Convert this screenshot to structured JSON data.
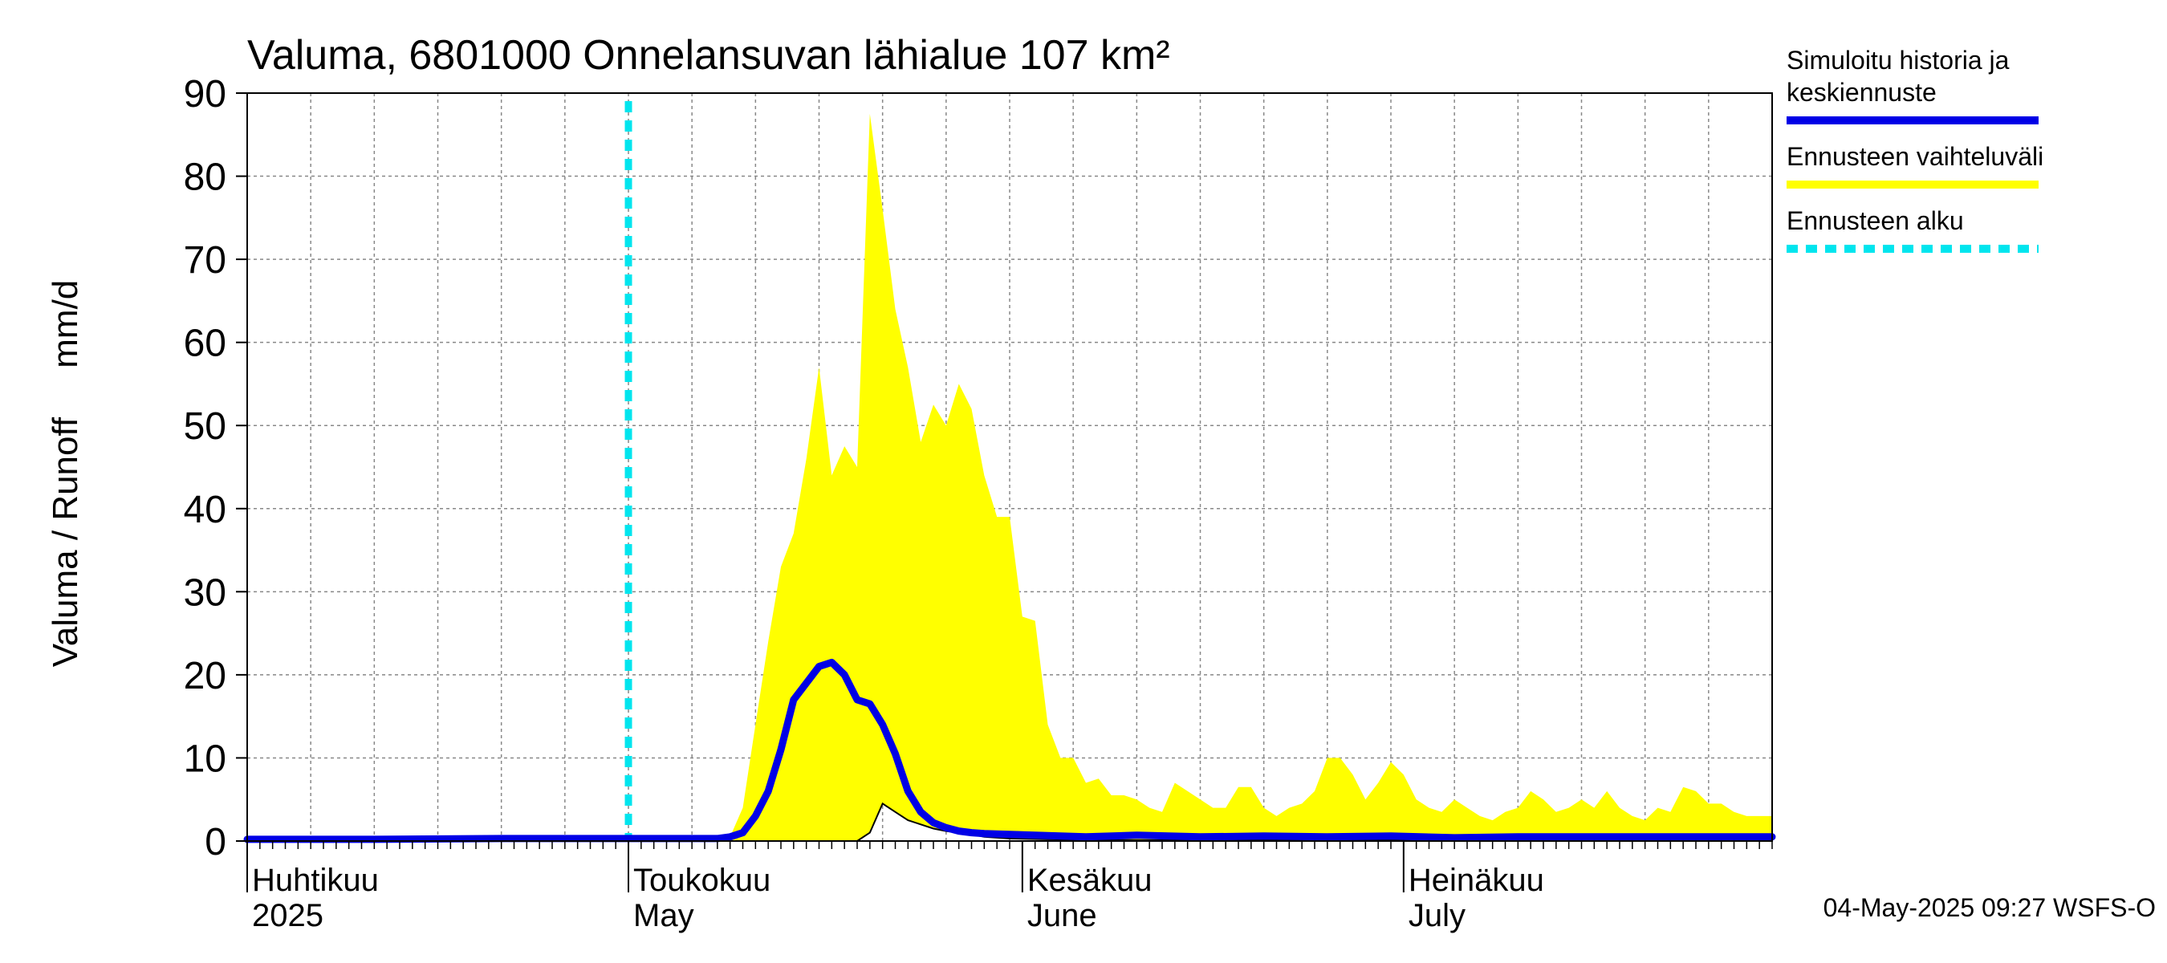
{
  "chart_data": {
    "type": "area",
    "title": "Valuma, 6801000 Onnelansuvan lähialue 107 km²",
    "ylabel": "Valuma / Runoff     mm/d",
    "xlabel": "",
    "ylim": [
      0,
      90
    ],
    "y_ticks": [
      "0",
      "10",
      "20",
      "30",
      "40",
      "50",
      "60",
      "70",
      "80",
      "90"
    ],
    "x_range_days": [
      0,
      120
    ],
    "forecast_start_day": 30,
    "month_labels": [
      {
        "fi": "Huhtikuu",
        "en": "2025",
        "day": 0
      },
      {
        "fi": "Toukokuu",
        "en": "May",
        "day": 30
      },
      {
        "fi": "Kesäkuu",
        "en": "June",
        "day": 61
      },
      {
        "fi": "Heinäkuu",
        "en": "July",
        "day": 91
      }
    ],
    "band_upper": [
      [
        0,
        0
      ],
      [
        37,
        0
      ],
      [
        38,
        0.5
      ],
      [
        39,
        4
      ],
      [
        40,
        14
      ],
      [
        41,
        24
      ],
      [
        42,
        33
      ],
      [
        43,
        37
      ],
      [
        44,
        46
      ],
      [
        45,
        57
      ],
      [
        46,
        44
      ],
      [
        47,
        47.5
      ],
      [
        48,
        45
      ],
      [
        49,
        87.5
      ],
      [
        50,
        76
      ],
      [
        51,
        64
      ],
      [
        52,
        57
      ],
      [
        53,
        48
      ],
      [
        54,
        52.5
      ],
      [
        55,
        50
      ],
      [
        56,
        55
      ],
      [
        57,
        52
      ],
      [
        58,
        44
      ],
      [
        59,
        39
      ],
      [
        60,
        39
      ],
      [
        61,
        27
      ],
      [
        62,
        26.5
      ],
      [
        63,
        14
      ],
      [
        64,
        10
      ],
      [
        65,
        10
      ],
      [
        66,
        7
      ],
      [
        67,
        7.5
      ],
      [
        68,
        5.5
      ],
      [
        69,
        5.5
      ],
      [
        70,
        5
      ],
      [
        71,
        4
      ],
      [
        72,
        3.5
      ],
      [
        73,
        7
      ],
      [
        74,
        6
      ],
      [
        75,
        5
      ],
      [
        76,
        4
      ],
      [
        77,
        4
      ],
      [
        78,
        6.5
      ],
      [
        79,
        6.5
      ],
      [
        80,
        4
      ],
      [
        81,
        3
      ],
      [
        82,
        4
      ],
      [
        83,
        4.5
      ],
      [
        84,
        6
      ],
      [
        85,
        10
      ],
      [
        86,
        10
      ],
      [
        87,
        8
      ],
      [
        88,
        5
      ],
      [
        89,
        7
      ],
      [
        90,
        9.5
      ],
      [
        91,
        8
      ],
      [
        92,
        5
      ],
      [
        93,
        4
      ],
      [
        94,
        3.5
      ],
      [
        95,
        5
      ],
      [
        96,
        4
      ],
      [
        97,
        3
      ],
      [
        98,
        2.5
      ],
      [
        99,
        3.5
      ],
      [
        100,
        4
      ],
      [
        101,
        6
      ],
      [
        102,
        5
      ],
      [
        103,
        3.5
      ],
      [
        104,
        4
      ],
      [
        105,
        5
      ],
      [
        106,
        4
      ],
      [
        107,
        6
      ],
      [
        108,
        4
      ],
      [
        109,
        3
      ],
      [
        110,
        2.5
      ],
      [
        111,
        4
      ],
      [
        112,
        3.5
      ],
      [
        113,
        6.5
      ],
      [
        114,
        6
      ],
      [
        115,
        4.5
      ],
      [
        116,
        4.5
      ],
      [
        117,
        3.5
      ],
      [
        118,
        3
      ],
      [
        119,
        3
      ],
      [
        120,
        3
      ]
    ],
    "band_lower": [
      [
        0,
        0
      ],
      [
        48,
        0
      ],
      [
        49,
        1
      ],
      [
        50,
        4.5
      ],
      [
        51,
        3.5
      ],
      [
        52,
        2.5
      ],
      [
        53,
        2
      ],
      [
        54,
        1.5
      ],
      [
        55,
        1.2
      ],
      [
        56,
        1
      ],
      [
        57,
        0.8
      ],
      [
        58,
        0.5
      ],
      [
        60,
        0.3
      ],
      [
        63,
        0.2
      ],
      [
        70,
        0.1
      ],
      [
        120,
        0.1
      ]
    ],
    "series": [
      {
        "name": "Simuloitu historia ja keskiennuste",
        "color": "#0000e6",
        "points": [
          [
            0,
            0.2
          ],
          [
            10,
            0.2
          ],
          [
            20,
            0.3
          ],
          [
            30,
            0.3
          ],
          [
            37,
            0.3
          ],
          [
            38,
            0.5
          ],
          [
            39,
            1
          ],
          [
            40,
            3
          ],
          [
            41,
            6
          ],
          [
            42,
            11
          ],
          [
            43,
            17
          ],
          [
            44,
            19
          ],
          [
            45,
            21
          ],
          [
            46,
            21.5
          ],
          [
            47,
            20
          ],
          [
            48,
            17
          ],
          [
            49,
            16.5
          ],
          [
            50,
            14
          ],
          [
            51,
            10.5
          ],
          [
            52,
            6
          ],
          [
            53,
            3.5
          ],
          [
            54,
            2.2
          ],
          [
            55,
            1.6
          ],
          [
            56,
            1.2
          ],
          [
            57,
            1
          ],
          [
            58,
            0.9
          ],
          [
            60,
            0.8
          ],
          [
            62,
            0.7
          ],
          [
            64,
            0.6
          ],
          [
            66,
            0.5
          ],
          [
            70,
            0.7
          ],
          [
            75,
            0.5
          ],
          [
            80,
            0.6
          ],
          [
            85,
            0.5
          ],
          [
            90,
            0.6
          ],
          [
            95,
            0.4
          ],
          [
            100,
            0.5
          ],
          [
            110,
            0.5
          ],
          [
            120,
            0.5
          ]
        ]
      }
    ],
    "legend": [
      {
        "label_lines": [
          "Simuloitu historia ja",
          "keskiennuste"
        ],
        "color": "#0000e6",
        "style": "solid"
      },
      {
        "label_lines": [
          "Ennusteen vaihteluväli"
        ],
        "color": "#ffff00",
        "style": "solid"
      },
      {
        "label_lines": [
          "Ennusteen alku"
        ],
        "color": "#00e5ee",
        "style": "dashed"
      }
    ],
    "footer": "04-May-2025 09:27 WSFS-O",
    "colors": {
      "band": "#ffff00",
      "forecast_start": "#00e5ee",
      "line": "#0000e6",
      "grid": "#888888"
    }
  }
}
